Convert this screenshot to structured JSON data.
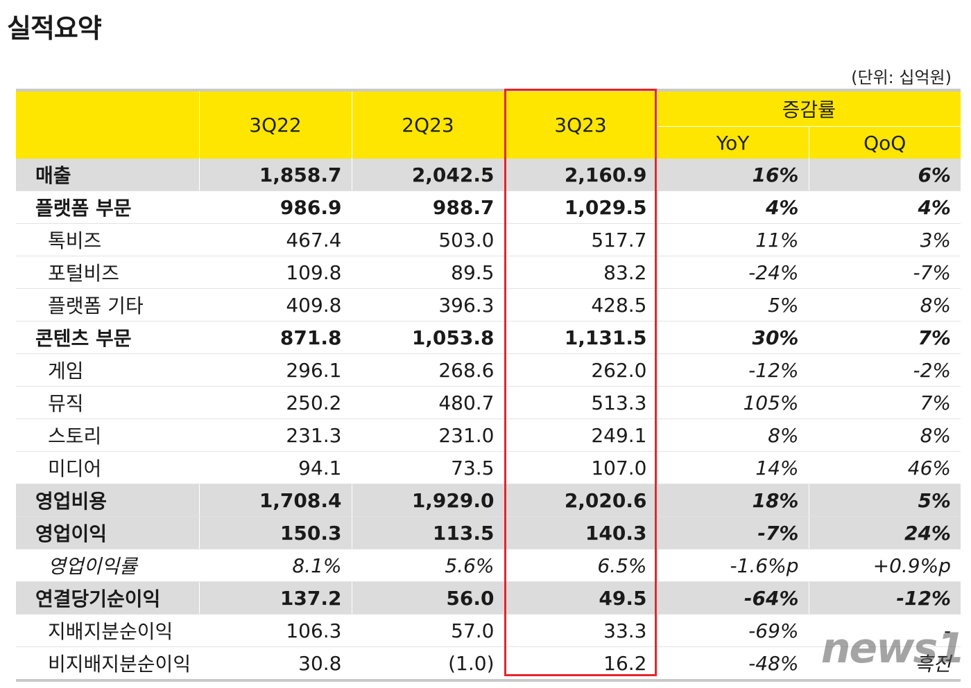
{
  "title": "실적요약",
  "unit": "(단위: 십억원)",
  "header": {
    "periods": [
      "3Q22",
      "2Q23",
      "3Q23"
    ],
    "change_group": "증감률",
    "change_cols": [
      "YoY",
      "QoQ"
    ]
  },
  "rows": [
    {
      "label": "매출",
      "values": [
        "1,858.7",
        "2,042.5",
        "2,160.9"
      ],
      "yoy": "16%",
      "qoq": "6%"
    },
    {
      "label": "플랫폼 부문",
      "values": [
        "986.9",
        "988.7",
        "1,029.5"
      ],
      "yoy": "4%",
      "qoq": "4%"
    },
    {
      "label": "톡비즈",
      "values": [
        "467.4",
        "503.0",
        "517.7"
      ],
      "yoy": "11%",
      "qoq": "3%"
    },
    {
      "label": "포털비즈",
      "values": [
        "109.8",
        "89.5",
        "83.2"
      ],
      "yoy": "-24%",
      "qoq": "-7%"
    },
    {
      "label": "플랫폼 기타",
      "values": [
        "409.8",
        "396.3",
        "428.5"
      ],
      "yoy": "5%",
      "qoq": "8%"
    },
    {
      "label": "콘텐츠 부문",
      "values": [
        "871.8",
        "1,053.8",
        "1,131.5"
      ],
      "yoy": "30%",
      "qoq": "7%"
    },
    {
      "label": "게임",
      "values": [
        "296.1",
        "268.6",
        "262.0"
      ],
      "yoy": "-12%",
      "qoq": "-2%"
    },
    {
      "label": "뮤직",
      "values": [
        "250.2",
        "480.7",
        "513.3"
      ],
      "yoy": "105%",
      "qoq": "7%"
    },
    {
      "label": "스토리",
      "values": [
        "231.3",
        "231.0",
        "249.1"
      ],
      "yoy": "8%",
      "qoq": "8%"
    },
    {
      "label": "미디어",
      "values": [
        "94.1",
        "73.5",
        "107.0"
      ],
      "yoy": "14%",
      "qoq": "46%"
    },
    {
      "label": "영업비용",
      "values": [
        "1,708.4",
        "1,929.0",
        "2,020.6"
      ],
      "yoy": "18%",
      "qoq": "5%"
    },
    {
      "label": "영업이익",
      "values": [
        "150.3",
        "113.5",
        "140.3"
      ],
      "yoy": "-7%",
      "qoq": "24%"
    },
    {
      "label": "영업이익률",
      "values": [
        "8.1%",
        "5.6%",
        "6.5%"
      ],
      "yoy": "-1.6%p",
      "qoq": "+0.9%p"
    },
    {
      "label": "연결당기순이익",
      "values": [
        "137.2",
        "56.0",
        "49.5"
      ],
      "yoy": "-64%",
      "qoq": "-12%"
    },
    {
      "label": "지배지분순이익",
      "values": [
        "106.3",
        "57.0",
        "33.3"
      ],
      "yoy": "-69%",
      "qoq": "-"
    },
    {
      "label": "비지배지분순이익",
      "values": [
        "30.8",
        "(1.0)",
        "16.2"
      ],
      "yoy": "-48%",
      "qoq": "흑전"
    }
  ],
  "watermark": "news1",
  "colors": {
    "header_bg": "#ffe600",
    "grey_row": "#dcdcdc",
    "highlight": "#e8232a"
  }
}
